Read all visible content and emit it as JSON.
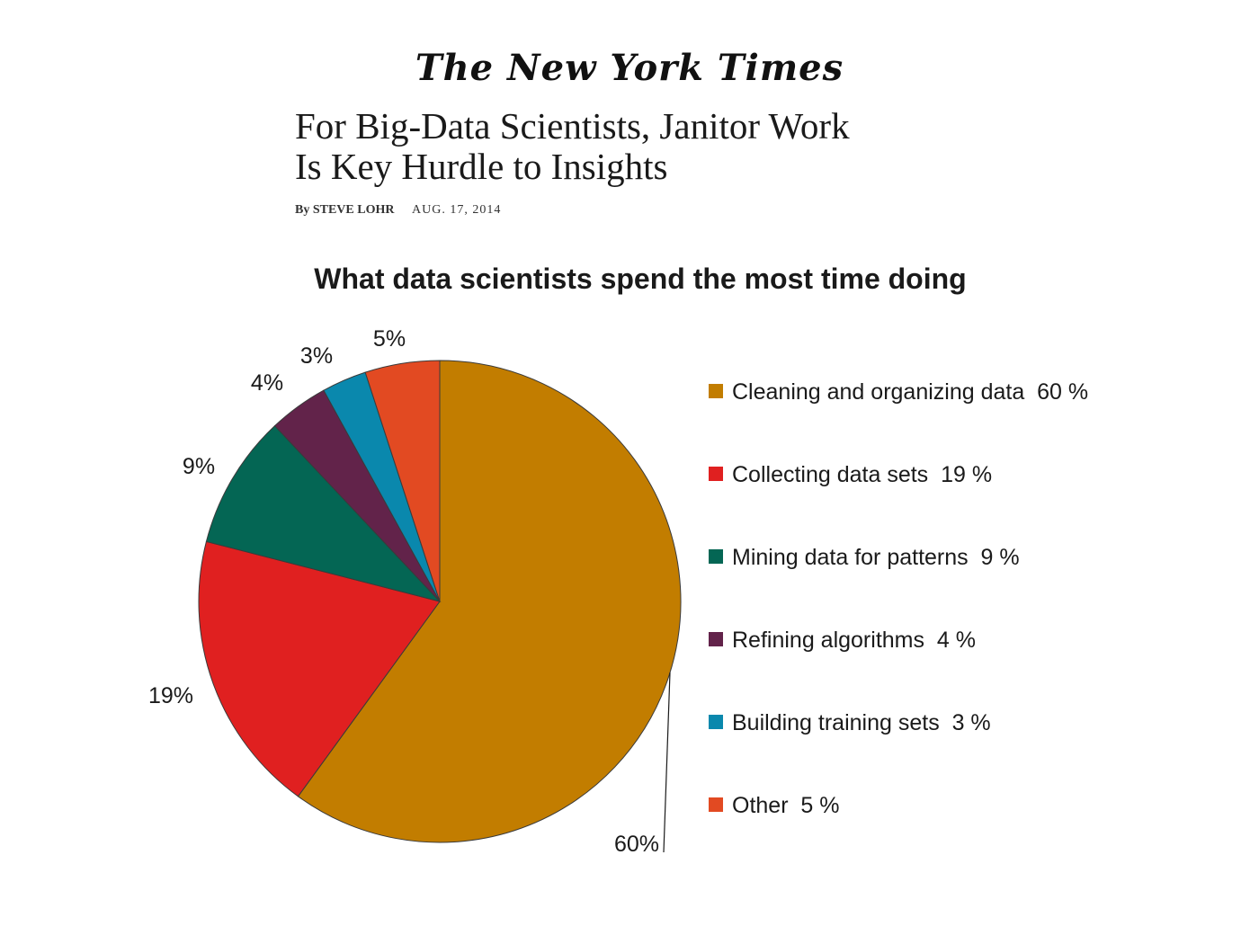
{
  "masthead": "The New York Times",
  "headline": {
    "line1": "For Big-Data Scientists,  Janitor Work",
    "line2": "Is Key Hurdle to Insights"
  },
  "byline": {
    "author": "By STEVE LOHR",
    "date": "AUG. 17, 2014"
  },
  "colors": {
    "cleaning": "#C27D00",
    "collecting": "#E02020",
    "mining": "#046654",
    "refining": "#62234A",
    "building": "#0A88AD",
    "other": "#E24A22"
  },
  "chart_data": {
    "type": "pie",
    "title": "What data scientists spend the most time doing",
    "legend_position": "right",
    "slices": [
      {
        "name": "Cleaning and organizing data",
        "value": 60,
        "label": "60%",
        "legend": "Cleaning and organizing data  60 %",
        "color": "#C27D00"
      },
      {
        "name": "Collecting data sets",
        "value": 19,
        "label": "19%",
        "legend": "Collecting data sets  19 %",
        "color": "#E02020"
      },
      {
        "name": "Mining data for patterns",
        "value": 9,
        "label": "9%",
        "legend": "Mining data for patterns  9 %",
        "color": "#046654"
      },
      {
        "name": "Refining algorithms",
        "value": 4,
        "label": "4%",
        "legend": "Refining algorithms  4 %",
        "color": "#62234A"
      },
      {
        "name": "Building training sets",
        "value": 3,
        "label": "3%",
        "legend": "Building training sets  3 %",
        "color": "#0A88AD"
      },
      {
        "name": "Other",
        "value": 5,
        "label": "5%",
        "legend": "Other  5 %",
        "color": "#E24A22"
      }
    ]
  }
}
